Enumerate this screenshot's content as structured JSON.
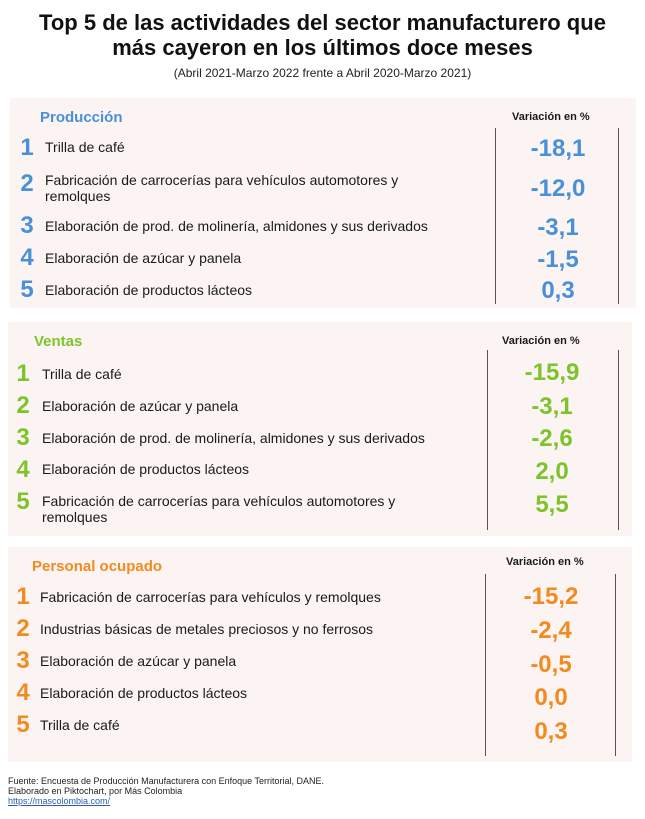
{
  "header": {
    "title_line1": "Top 5 de las actividades del sector manufacturero que",
    "title_line2": "más cayeron en los últimos doce meses",
    "subtitle": "(Abril 2021-Marzo 2022  frente a   Abril 2020-Marzo 2021)"
  },
  "colors": {
    "produccion": "#4a90d9",
    "ventas": "#7cc42a",
    "personal": "#f28a1f",
    "panel_bg": "#fbf4f3"
  },
  "produccion": {
    "heading": "Producción",
    "var_heading": "Variación en %",
    "rows": [
      {
        "rank": "1",
        "label1": "Trilla de café",
        "label2": "",
        "value": "-18,1"
      },
      {
        "rank": "2",
        "label1": "Fabricación de carrocerías para vehículos automotores y",
        "label2": "remolques",
        "value": "-12,0"
      },
      {
        "rank": "3",
        "label1": "Elaboración de prod. de molinería, almidones y sus derivados",
        "label2": "",
        "value": "-3,1"
      },
      {
        "rank": "4",
        "label1": "Elaboración de azúcar y panela",
        "label2": "",
        "value": "-1,5"
      },
      {
        "rank": "5",
        "label1": "Elaboración de productos lácteos",
        "label2": "",
        "value": "0,3"
      }
    ]
  },
  "ventas": {
    "heading": "Ventas",
    "var_heading": "Variación en %",
    "rows": [
      {
        "rank": "1",
        "label1": "Trilla de café",
        "label2": "",
        "value": "-15,9"
      },
      {
        "rank": "2",
        "label1": "Elaboración de azúcar y panela",
        "label2": "",
        "value": "-3,1"
      },
      {
        "rank": "3",
        "label1": "Elaboración de prod. de molinería, almidones y sus derivados",
        "label2": "",
        "value": "-2,6"
      },
      {
        "rank": "4",
        "label1": "Elaboración de productos lácteos",
        "label2": "",
        "value": "2,0"
      },
      {
        "rank": "5",
        "label1": "Fabricación de carrocerías para vehículos automotores y",
        "label2": "remolques",
        "value": "5,5"
      }
    ]
  },
  "personal": {
    "heading": "Personal ocupado",
    "var_heading": "Variación en %",
    "rows": [
      {
        "rank": "1",
        "label1": "Fabricación de carrocerías para vehículos y remolques",
        "label2": "",
        "value": "-15,2"
      },
      {
        "rank": "2",
        "label1": "Industrias básicas de metales preciosos y no ferrosos",
        "label2": "",
        "value": "-2,4"
      },
      {
        "rank": "3",
        "label1": "Elaboración de azúcar y panela",
        "label2": "",
        "value": "-0,5"
      },
      {
        "rank": "4",
        "label1": "Elaboración de productos lácteos",
        "label2": "",
        "value": "0,0"
      },
      {
        "rank": "5",
        "label1": "Trilla de café",
        "label2": "",
        "value": "0,3"
      }
    ]
  },
  "footer": {
    "source": "Fuente: Encuesta de Producción Manufacturera con Enfoque Territorial, DANE.",
    "credit": "Elaborado en Piktochart, por Más Colombia",
    "link": "https://mascolombia.com/"
  }
}
